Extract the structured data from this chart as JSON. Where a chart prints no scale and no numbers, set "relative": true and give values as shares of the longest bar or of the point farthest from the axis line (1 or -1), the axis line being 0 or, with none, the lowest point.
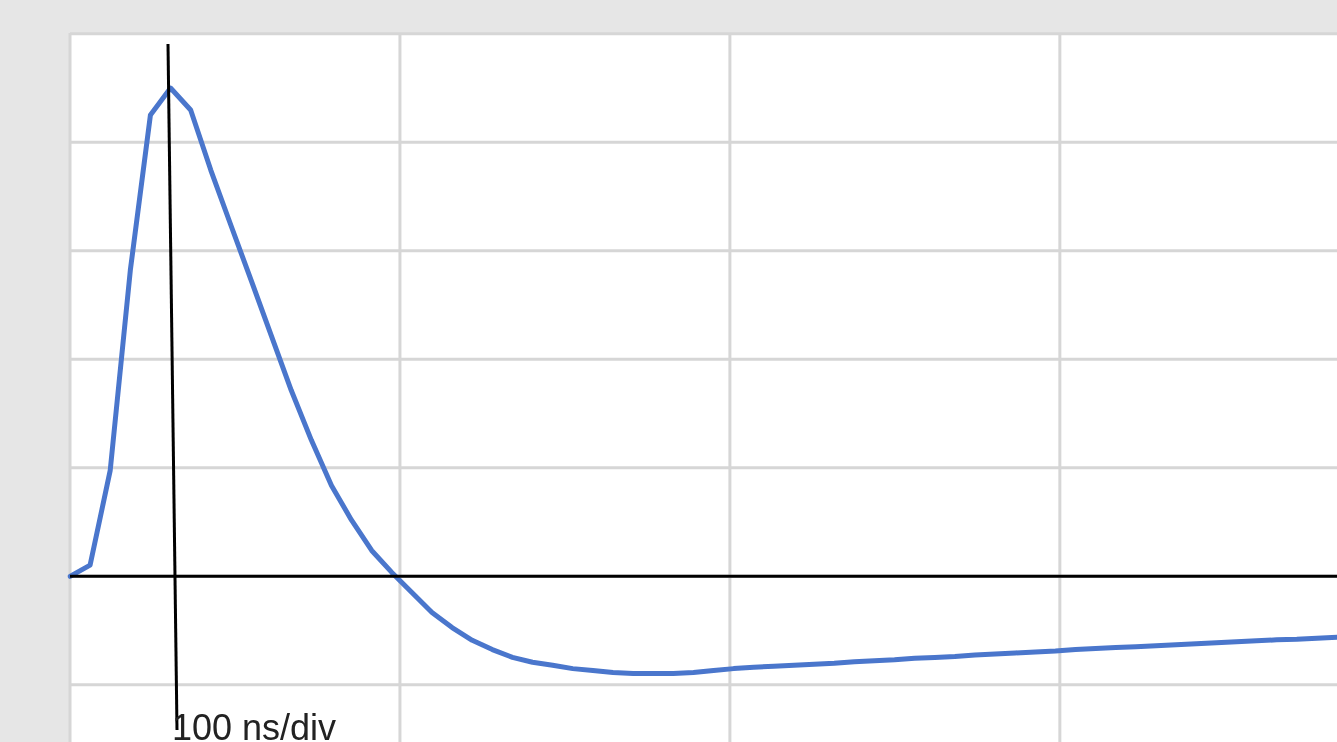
{
  "chart_data": {
    "type": "line",
    "relative": true,
    "grid": true,
    "color": "#4a76cc",
    "annotations": [
      "100 ns/div"
    ],
    "categories": [
      null,
      null,
      null,
      null,
      null,
      null,
      null,
      null,
      null,
      null,
      null,
      null,
      null,
      null,
      null,
      null,
      null,
      null,
      null,
      null,
      null,
      null,
      null,
      null,
      null,
      null,
      null,
      null,
      null,
      null,
      null,
      null,
      null,
      null,
      null,
      null,
      null,
      null,
      null,
      null,
      null,
      null,
      null,
      null,
      null,
      null,
      null,
      null,
      null,
      null,
      null,
      null,
      null,
      null,
      null,
      null,
      null,
      null,
      null,
      null,
      null,
      null,
      null,
      null
    ],
    "values": [
      0,
      0.023,
      0.217,
      0.627,
      0.945,
      1,
      0.955,
      0.832,
      0.719,
      0.607,
      0.494,
      0.381,
      0.279,
      0.186,
      0.115,
      0.053,
      0.008,
      -0.033,
      -0.074,
      -0.105,
      -0.131,
      -0.15,
      -0.166,
      -0.176,
      -0.182,
      -0.189,
      -0.193,
      -0.197,
      -0.199,
      -0.199,
      -0.199,
      -0.197,
      -0.193,
      -0.189,
      -0.186,
      -0.184,
      -0.182,
      -0.18,
      -0.178,
      -0.175,
      -0.173,
      -0.171,
      -0.168,
      -0.166,
      -0.164,
      -0.161,
      -0.159,
      -0.157,
      -0.155,
      -0.153,
      -0.15,
      -0.148,
      -0.146,
      -0.144,
      -0.142,
      -0.14,
      -0.138,
      -0.136,
      -0.134,
      -0.132,
      -0.13,
      -0.129,
      -0.127,
      -0.125
    ]
  }
}
